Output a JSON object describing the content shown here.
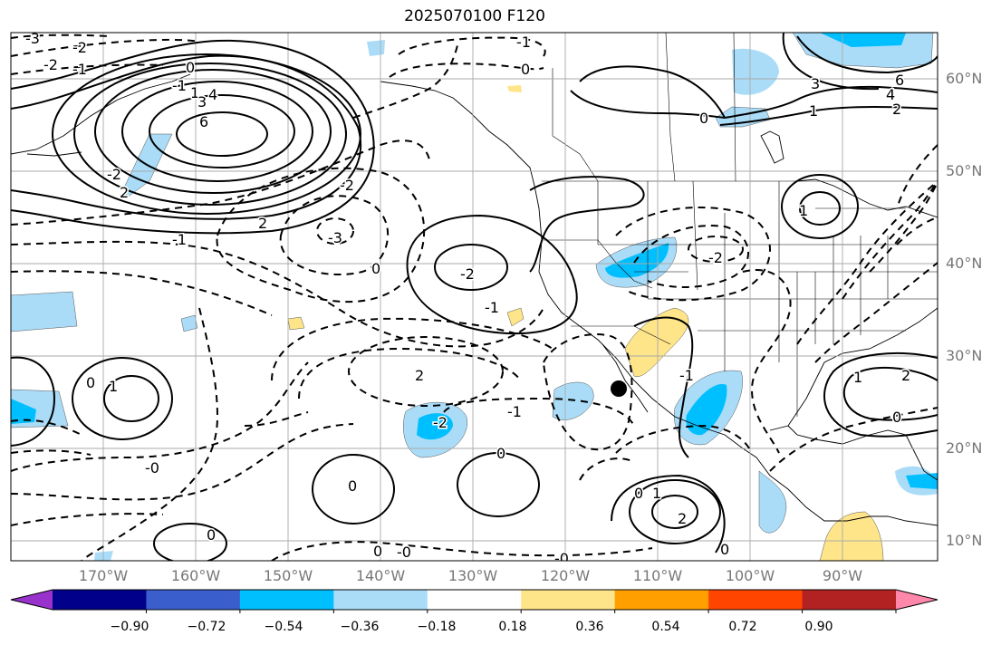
{
  "title": "2025070100 F120",
  "lat_labels": [
    "60°N",
    "50°N",
    "40°N",
    "30°N",
    "20°N",
    "10°N"
  ],
  "lon_labels": [
    "170°W",
    "160°W",
    "150°W",
    "140°W",
    "130°W",
    "120°W",
    "110°W",
    "100°W",
    "90°W"
  ],
  "colorbar": {
    "ticks": [
      "−0.90",
      "−0.72",
      "−0.54",
      "−0.36",
      "−0.18",
      "0.18",
      "0.36",
      "0.54",
      "0.72",
      "0.90"
    ],
    "colors": [
      "#9932cc",
      "#00008b",
      "#3a5fcd",
      "#00bfff",
      "#aadcf8",
      "#ffffff",
      "#ffe58a",
      "#ffa000",
      "#ff4500",
      "#b22222",
      "#ff88aa"
    ]
  },
  "contour_labels": [
    {
      "t": "-3"
    },
    {
      "t": "-2"
    },
    {
      "t": "-2"
    },
    {
      "t": "-1"
    },
    {
      "t": "-1"
    },
    {
      "t": "-2"
    },
    {
      "t": "-3"
    },
    {
      "t": "-2"
    },
    {
      "t": "-1"
    },
    {
      "t": "0"
    },
    {
      "t": "2"
    },
    {
      "t": "1"
    },
    {
      "t": "3"
    },
    {
      "t": "4"
    },
    {
      "t": "6"
    },
    {
      "t": "2"
    },
    {
      "t": "-2"
    },
    {
      "t": "-1"
    },
    {
      "t": "0"
    },
    {
      "t": "0"
    },
    {
      "t": "2"
    },
    {
      "t": "1"
    },
    {
      "t": "-2"
    },
    {
      "t": "-2"
    },
    {
      "t": "-1"
    },
    {
      "t": "-1"
    },
    {
      "t": "1"
    },
    {
      "t": "0"
    },
    {
      "t": "0"
    },
    {
      "t": "0"
    },
    {
      "t": "0"
    },
    {
      "t": "-0"
    },
    {
      "t": "0"
    },
    {
      "t": "1"
    },
    {
      "t": "2"
    },
    {
      "t": "-0"
    },
    {
      "t": "0"
    },
    {
      "t": "-0"
    },
    {
      "t": "3"
    },
    {
      "t": "4"
    },
    {
      "t": "6"
    },
    {
      "t": "0"
    },
    {
      "t": "1"
    },
    {
      "t": "2"
    },
    {
      "t": "-1"
    },
    {
      "t": "0"
    },
    {
      "t": "1"
    },
    {
      "t": "2"
    },
    {
      "t": "0"
    }
  ]
}
